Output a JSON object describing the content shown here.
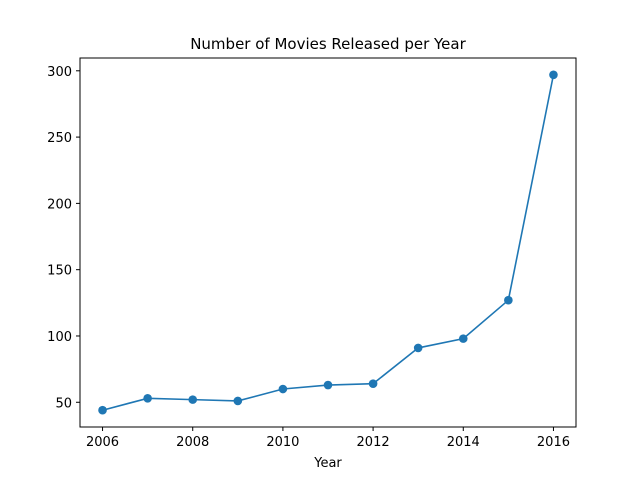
{
  "chart_data": {
    "type": "line",
    "title": "Number of Movies Released per Year",
    "xlabel": "Year",
    "ylabel": "",
    "x": [
      2006,
      2007,
      2008,
      2009,
      2010,
      2011,
      2012,
      2013,
      2014,
      2015,
      2016
    ],
    "series": [
      {
        "values": [
          44,
          53,
          52,
          51,
          60,
          63,
          64,
          91,
          98,
          127,
          297
        ],
        "color": "#1f77b4",
        "marker": "circle"
      }
    ],
    "xlim": [
      2005.5,
      2016.5
    ],
    "ylim": [
      31.35,
      309.65
    ],
    "xticks": [
      2006,
      2008,
      2010,
      2012,
      2014,
      2016
    ],
    "yticks": [
      50,
      100,
      150,
      200,
      250,
      300
    ],
    "grid": false,
    "legend": "none"
  }
}
